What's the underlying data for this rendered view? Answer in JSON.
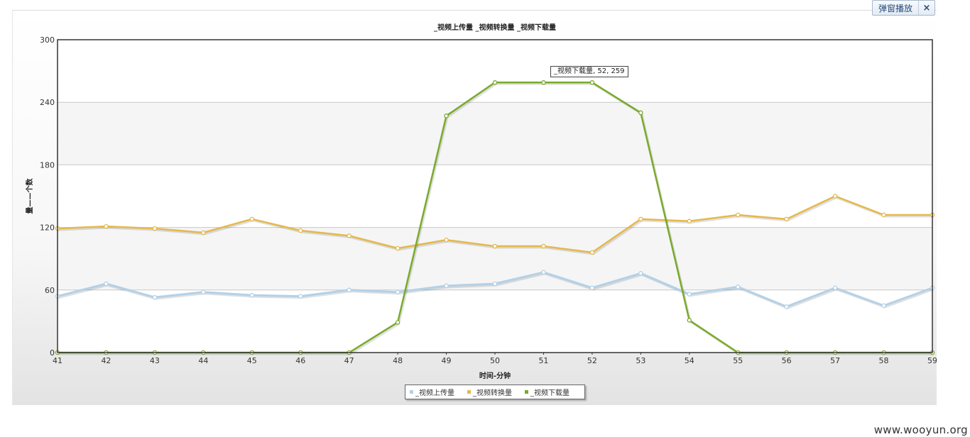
{
  "popup": {
    "label": "弹窗播放",
    "close": "×"
  },
  "watermark": "www.wooyun.org",
  "tooltip": "_视频下载量, 52, 259",
  "chart_data": {
    "type": "line",
    "title": "_视频上传量 _视频转换量 _视频下载量",
    "xlabel": "时间-分钟",
    "ylabel": "量——个数",
    "x": [
      41,
      42,
      43,
      44,
      45,
      46,
      47,
      48,
      49,
      50,
      51,
      52,
      53,
      54,
      55,
      56,
      57,
      58,
      59
    ],
    "ylim": [
      0,
      300
    ],
    "yticks": [
      0,
      60,
      120,
      180,
      240,
      300
    ],
    "grid": true,
    "legend_position": "bottom-center",
    "series": [
      {
        "name": "_视频上传量",
        "color": "#b3d1e8",
        "values": [
          54,
          66,
          53,
          58,
          55,
          54,
          60,
          58,
          64,
          66,
          77,
          62,
          76,
          56,
          63,
          44,
          62,
          45,
          62
        ]
      },
      {
        "name": "_视频转换量",
        "color": "#e5b84a",
        "values": [
          119,
          121,
          119,
          115,
          128,
          117,
          112,
          100,
          108,
          102,
          102,
          96,
          128,
          126,
          132,
          128,
          150,
          132,
          132
        ]
      },
      {
        "name": "_视频下载量",
        "color": "#7aaa2a",
        "values": [
          0,
          0,
          0,
          0,
          0,
          0,
          0,
          29,
          227,
          259,
          259,
          259,
          230,
          31,
          0,
          0,
          0,
          0,
          0
        ]
      }
    ]
  }
}
